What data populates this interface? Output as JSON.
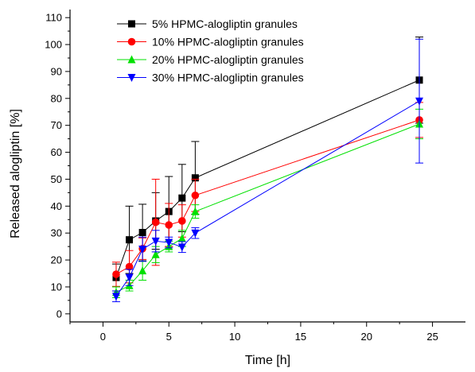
{
  "chart_data": {
    "type": "line",
    "xlabel": "Time [h]",
    "ylabel": "Released alogliptin [%]",
    "xlim": [
      -2.5,
      27.5
    ],
    "ylim": [
      -3,
      113
    ],
    "xticks": [
      0,
      5,
      10,
      15,
      20,
      25
    ],
    "yticks": [
      0,
      10,
      20,
      30,
      40,
      50,
      60,
      70,
      80,
      90,
      100,
      110
    ],
    "legend_position": "top-left",
    "x": [
      1,
      2,
      3,
      4,
      5,
      6,
      7,
      24
    ],
    "series": [
      {
        "name": "5% HPMC-alogliptin granules",
        "color": "#000000",
        "marker": "square",
        "values": [
          13.5,
          27.5,
          30.2,
          34.5,
          38.0,
          43.0,
          50.5,
          86.8
        ],
        "errors": [
          5.0,
          12.5,
          10.5,
          10.5,
          13.0,
          12.5,
          13.5,
          16.0
        ]
      },
      {
        "name": "10% HPMC-alogliptin granules",
        "color": "#ff0000",
        "marker": "circle",
        "values": [
          14.7,
          17.5,
          24.2,
          34.0,
          33.0,
          34.5,
          44.0,
          72.0
        ],
        "errors": [
          4.5,
          6.0,
          4.0,
          16.0,
          8.0,
          6.0,
          6.0,
          6.5
        ]
      },
      {
        "name": "20% HPMC-alogliptin granules",
        "color": "#00e000",
        "marker": "triangle-up",
        "values": [
          8.0,
          10.5,
          16.0,
          22.0,
          25.0,
          28.0,
          38.0,
          70.5
        ],
        "errors": [
          2.0,
          2.0,
          3.5,
          3.0,
          2.0,
          3.0,
          2.5,
          5.5
        ]
      },
      {
        "name": "30% HPMC-alogliptin granules",
        "color": "#0000ff",
        "marker": "triangle-down",
        "values": [
          6.5,
          13.5,
          24.0,
          27.0,
          26.5,
          24.8,
          30.0,
          79.0
        ],
        "errors": [
          2.0,
          3.0,
          4.5,
          4.0,
          2.0,
          2.0,
          2.0,
          23.0
        ]
      }
    ]
  }
}
